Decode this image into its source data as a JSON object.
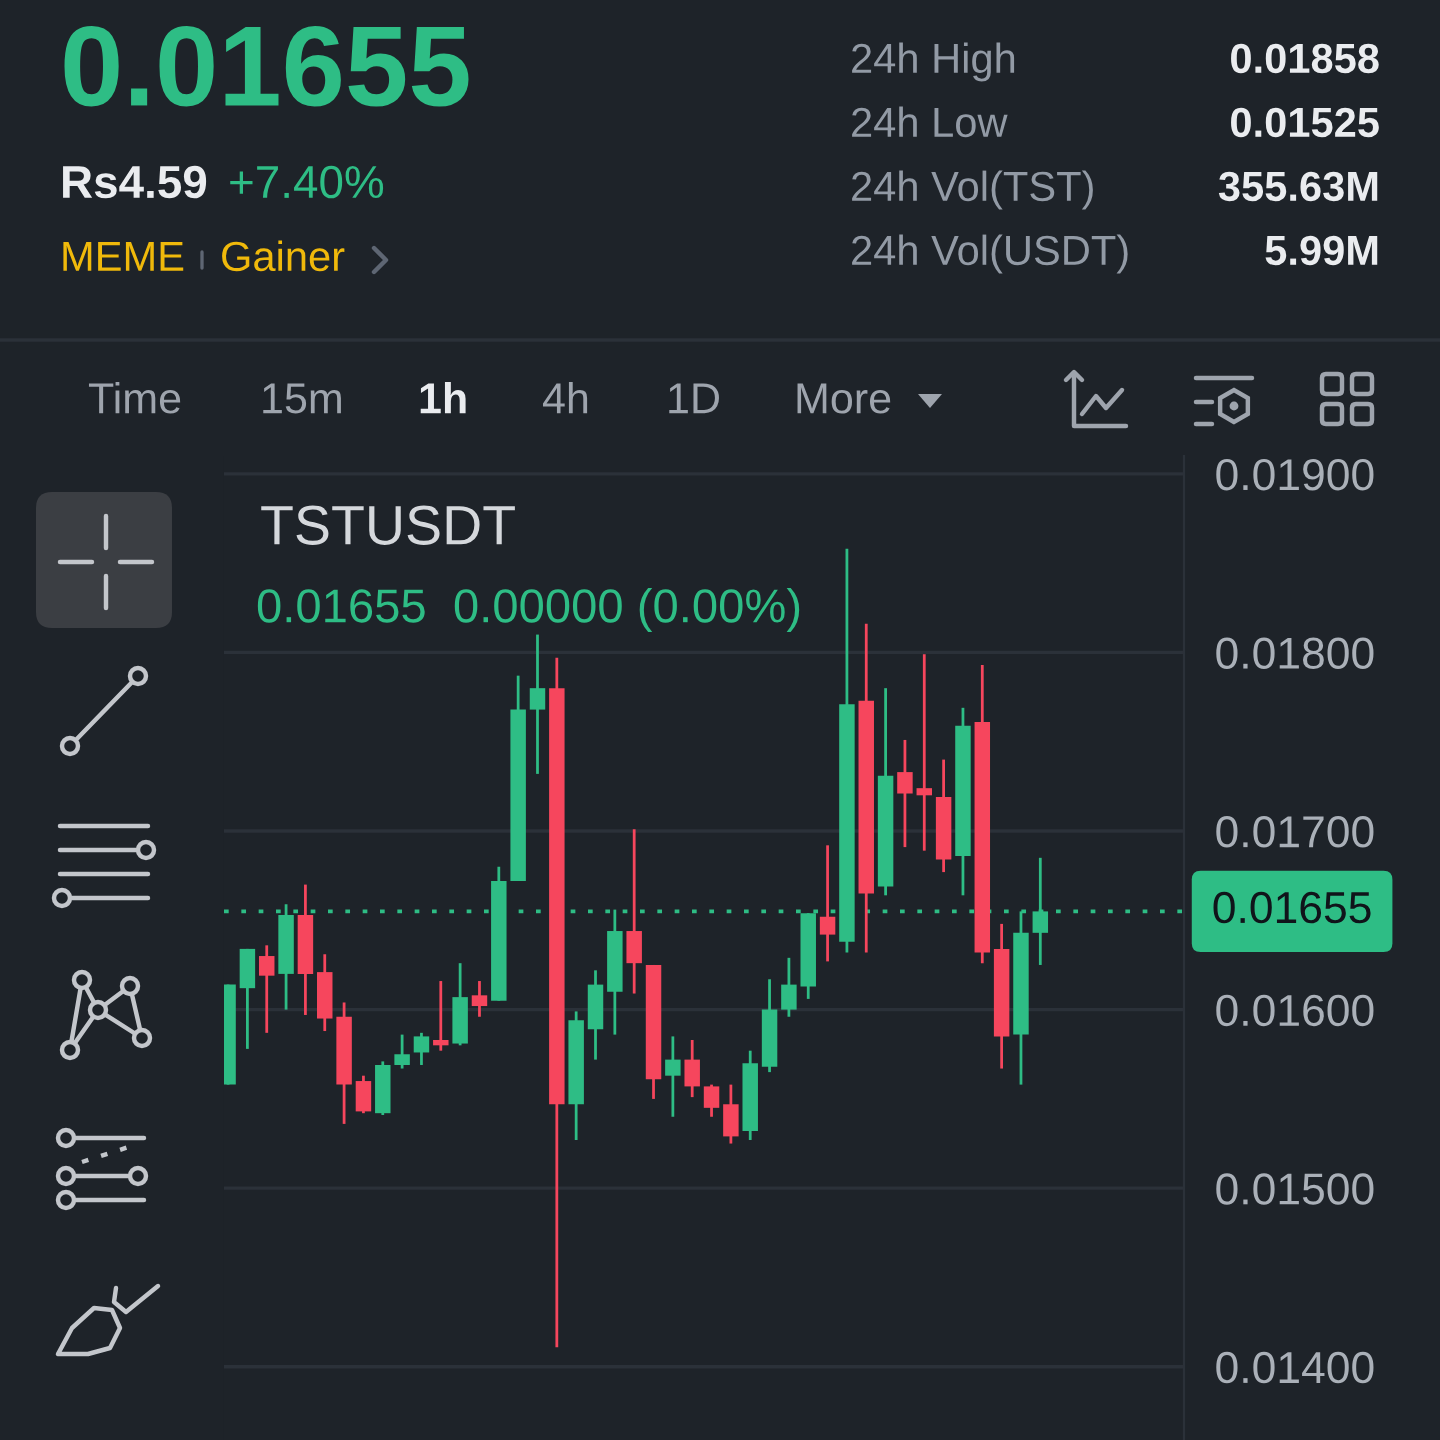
{
  "chart_data": {
    "type": "candlestick",
    "title": "TSTUSDT",
    "subtitle": "0.01655  0.00000 (0.00%)",
    "categories": [
      null,
      null,
      null,
      null,
      null,
      null,
      null,
      null,
      null,
      null,
      null,
      null,
      null,
      null,
      null,
      null,
      null,
      null,
      null,
      null,
      null,
      null,
      null,
      null,
      null,
      null,
      null,
      null,
      null,
      null,
      null,
      null,
      null,
      null,
      null,
      null,
      null,
      null,
      null,
      null,
      null,
      null,
      null
    ],
    "ohlc": [
      [
        0.01558,
        0.01614,
        0.01558,
        0.01614
      ],
      [
        0.01612,
        0.01634,
        0.01578,
        0.01634
      ],
      [
        0.0163,
        0.01636,
        0.01587,
        0.01619
      ],
      [
        0.0162,
        0.01659,
        0.016,
        0.01653
      ],
      [
        0.01653,
        0.0167,
        0.01597,
        0.0162
      ],
      [
        0.01621,
        0.01631,
        0.01588,
        0.01595
      ],
      [
        0.01596,
        0.01604,
        0.01536,
        0.01558
      ],
      [
        0.0156,
        0.01563,
        0.01542,
        0.01543
      ],
      [
        0.01542,
        0.01571,
        0.01541,
        0.01569
      ],
      [
        0.01569,
        0.01586,
        0.01567,
        0.01575
      ],
      [
        0.01576,
        0.01587,
        0.01569,
        0.01585
      ],
      [
        0.01583,
        0.01616,
        0.01577,
        0.0158
      ],
      [
        0.01581,
        0.01626,
        0.0158,
        0.01607
      ],
      [
        0.01608,
        0.01616,
        0.01596,
        0.01602
      ],
      [
        0.01605,
        0.0168,
        0.01605,
        0.01672
      ],
      [
        0.01672,
        0.01787,
        0.01672,
        0.01768
      ],
      [
        0.01768,
        0.0181,
        0.01732,
        0.0178
      ],
      [
        0.0178,
        0.01797,
        0.01411,
        0.01547
      ],
      [
        0.01547,
        0.01599,
        0.01527,
        0.01594
      ],
      [
        0.01589,
        0.01622,
        0.01572,
        0.01614
      ],
      [
        0.0161,
        0.01656,
        0.01586,
        0.01644
      ],
      [
        0.01644,
        0.01701,
        0.01609,
        0.01626
      ],
      [
        0.01625,
        0.01625,
        0.0155,
        0.01561
      ],
      [
        0.01563,
        0.01585,
        0.0154,
        0.01572
      ],
      [
        0.01572,
        0.01583,
        0.01551,
        0.01557
      ],
      [
        0.01557,
        0.01558,
        0.0154,
        0.01545
      ],
      [
        0.01547,
        0.01558,
        0.01525,
        0.01529
      ],
      [
        0.01532,
        0.01577,
        0.01527,
        0.0157
      ],
      [
        0.01568,
        0.01617,
        0.01565,
        0.016
      ],
      [
        0.016,
        0.01629,
        0.01596,
        0.01614
      ],
      [
        0.01613,
        0.01654,
        0.01606,
        0.01654
      ],
      [
        0.01652,
        0.01692,
        0.01627,
        0.01642
      ],
      [
        0.01638,
        0.01858,
        0.01632,
        0.01771
      ],
      [
        0.01773,
        0.01816,
        0.01632,
        0.01665
      ],
      [
        0.01669,
        0.0178,
        0.01664,
        0.01731
      ],
      [
        0.01733,
        0.01751,
        0.01691,
        0.01721
      ],
      [
        0.01724,
        0.01799,
        0.01689,
        0.0172
      ],
      [
        0.01719,
        0.0174,
        0.01677,
        0.01684
      ],
      [
        0.01686,
        0.01769,
        0.01664,
        0.01759
      ],
      [
        0.01761,
        0.01793,
        0.01626,
        0.01632
      ],
      [
        0.01634,
        0.01648,
        0.01567,
        0.01585
      ],
      [
        0.01586,
        0.01655,
        0.01558,
        0.01643
      ],
      [
        0.01643,
        0.01685,
        0.01625,
        0.01655
      ]
    ],
    "colors": [
      "#2ebd85",
      "#2ebd85",
      "#f6465d",
      "#2ebd85",
      "#f6465d",
      "#f6465d",
      "#f6465d",
      "#f6465d",
      "#2ebd85",
      "#2ebd85",
      "#2ebd85",
      "#f6465d",
      "#2ebd85",
      "#f6465d",
      "#2ebd85",
      "#2ebd85",
      "#2ebd85",
      "#f6465d",
      "#2ebd85",
      "#2ebd85",
      "#2ebd85",
      "#f6465d",
      "#f6465d",
      "#2ebd85",
      "#f6465d",
      "#f6465d",
      "#f6465d",
      "#2ebd85",
      "#2ebd85",
      "#2ebd85",
      "#2ebd85",
      "#f6465d",
      "#2ebd85",
      "#f6465d",
      "#2ebd85",
      "#f6465d",
      "#f6465d",
      "#f6465d",
      "#2ebd85",
      "#f6465d",
      "#f6465d",
      "#2ebd85",
      "#2ebd85"
    ],
    "ylim": [
      0.01359,
      0.0191
    ],
    "yticks": [
      {
        "value": 0.014,
        "label": "0.01400"
      },
      {
        "value": 0.015,
        "label": "0.01500"
      },
      {
        "value": 0.016,
        "label": "0.01600"
      },
      {
        "value": 0.017,
        "label": "0.01700"
      },
      {
        "value": 0.018,
        "label": "0.01800"
      },
      {
        "value": 0.019,
        "label": "0.01900"
      }
    ],
    "grid": "y",
    "tick_labels": "y",
    "ref_lines": [
      {
        "axis": "y",
        "value": 0.01655,
        "label": "0.01655",
        "color": "#2ebd85",
        "line_style": "dotted"
      }
    ],
    "annotations": [
      "0.01655",
      "Rs4.59",
      "+7.40%",
      "MEME",
      "Gainer",
      "24h High",
      "0.01858",
      "24h Low",
      "0.01525",
      "24h Vol(TST)",
      "355.63M",
      "24h Vol(USDT)",
      "5.99M",
      "Time",
      "15m",
      "1h",
      "4h",
      "1D",
      "More"
    ]
  }
}
